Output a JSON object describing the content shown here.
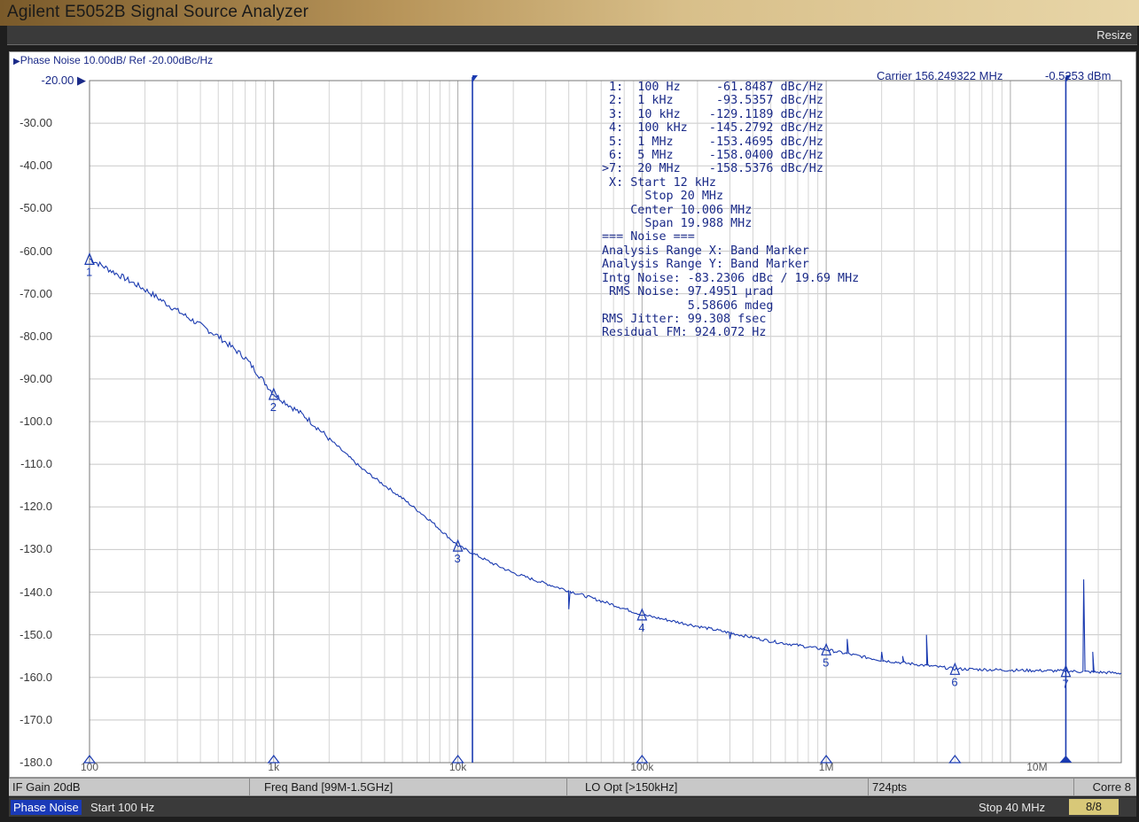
{
  "window": {
    "title": "Agilent E5052B Signal Source Analyzer",
    "resize_label": "Resize"
  },
  "trace_header": "Phase Noise 10.00dB/ Ref -20.00dBc/Hz",
  "carrier": {
    "frequency": "Carrier 156.249322 MHz",
    "power": "-0.5253 dBm"
  },
  "y_axis_labels": [
    "-20.00",
    "-30.00",
    "-40.00",
    "-50.00",
    "-60.00",
    "-70.00",
    "-80.00",
    "-90.00",
    "-100.0",
    "-110.0",
    "-120.0",
    "-130.0",
    "-140.0",
    "-150.0",
    "-160.0",
    "-170.0",
    "-180.0"
  ],
  "x_axis_labels": [
    "100",
    "1k",
    "10k",
    "100k",
    "1M",
    "10M"
  ],
  "marker_table": [
    {
      "id": "1:",
      "freq": "100 Hz",
      "value": "-61.8487",
      "unit": "dBc/Hz"
    },
    {
      "id": "2:",
      "freq": "1 kHz",
      "value": "-93.5357",
      "unit": "dBc/Hz"
    },
    {
      "id": "3:",
      "freq": "10 kHz",
      "value": "-129.1189",
      "unit": "dBc/Hz"
    },
    {
      "id": "4:",
      "freq": "100 kHz",
      "value": "-145.2792",
      "unit": "dBc/Hz"
    },
    {
      "id": "5:",
      "freq": "1 MHz",
      "value": "-153.4695",
      "unit": "dBc/Hz"
    },
    {
      "id": "6:",
      "freq": "5 MHz",
      "value": "-158.0400",
      "unit": "dBc/Hz"
    },
    {
      "id": ">7:",
      "freq": "20 MHz",
      "value": "-158.5376",
      "unit": "dBc/Hz"
    }
  ],
  "analysis_lines": [
    " X: Start 12 kHz",
    "      Stop 20 MHz",
    "    Center 10.006 MHz",
    "      Span 19.988 MHz",
    "=== Noise ===",
    "Analysis Range X: Band Marker",
    "Analysis Range Y: Band Marker",
    "Intg Noise: -83.2306 dBc / 19.69 MHz",
    " RMS Noise: 97.4951 µrad",
    "            5.58606 mdeg",
    "RMS Jitter: 99.308 fsec",
    "Residual FM: 924.072 Hz"
  ],
  "status_bar": {
    "if_gain": "IF Gain 20dB",
    "freq_band": "Freq Band [99M-1.5GHz]",
    "lo_opt": "LO Opt [>150kHz]",
    "points": "724pts",
    "corre": "Corre 8"
  },
  "footer": {
    "mode": "Phase Noise",
    "start": "Start 100 Hz",
    "stop": "Stop 40 MHz",
    "trace_count": "8/8"
  },
  "chart_data": {
    "type": "line",
    "title": "Phase Noise 10.00dB/ Ref -20.00dBc/Hz",
    "x_scale": "log",
    "xlim_hz": [
      100,
      40000000
    ],
    "ylim": [
      -180,
      -20
    ],
    "grid": true,
    "series": [
      {
        "x_hz": [
          100,
          150,
          200,
          300,
          500,
          700,
          1000,
          1500,
          2000,
          3000,
          5000,
          7000,
          10000,
          15000,
          20000,
          30000,
          50000,
          70000,
          100000,
          200000,
          500000,
          1000000,
          2000000,
          5000000,
          10000000,
          20000000,
          40000000
        ],
        "y_dbc_hz": [
          -61.8,
          -66,
          -69,
          -74,
          -80,
          -85,
          -93.5,
          -99,
          -104,
          -111,
          -118,
          -123,
          -129.1,
          -133,
          -135.5,
          -138,
          -141,
          -143,
          -145.3,
          -148,
          -151.5,
          -153.5,
          -156,
          -158.0,
          -158.3,
          -158.5,
          -159
        ]
      }
    ],
    "markers": [
      {
        "label": "1",
        "x_hz": 100,
        "y": -61.8487
      },
      {
        "label": "2",
        "x_hz": 1000,
        "y": -93.5357
      },
      {
        "label": "3",
        "x_hz": 10000,
        "y": -129.1189
      },
      {
        "label": "4",
        "x_hz": 100000,
        "y": -145.2792
      },
      {
        "label": "5",
        "x_hz": 1000000,
        "y": -153.4695
      },
      {
        "label": "6",
        "x_hz": 5000000,
        "y": -158.04
      },
      {
        "label": "7",
        "x_hz": 20000000,
        "y": -158.5376
      }
    ],
    "band_markers_hz": [
      12000,
      20000000
    ],
    "spurs": [
      {
        "x_hz": 40000,
        "y": -144
      },
      {
        "x_hz": 300000,
        "y": -151
      },
      {
        "x_hz": 1300000,
        "y": -151
      },
      {
        "x_hz": 2000000,
        "y": -154
      },
      {
        "x_hz": 2600000,
        "y": -155
      },
      {
        "x_hz": 3500000,
        "y": -150
      },
      {
        "x_hz": 25000000,
        "y": -137
      },
      {
        "x_hz": 28000000,
        "y": -154
      }
    ]
  }
}
